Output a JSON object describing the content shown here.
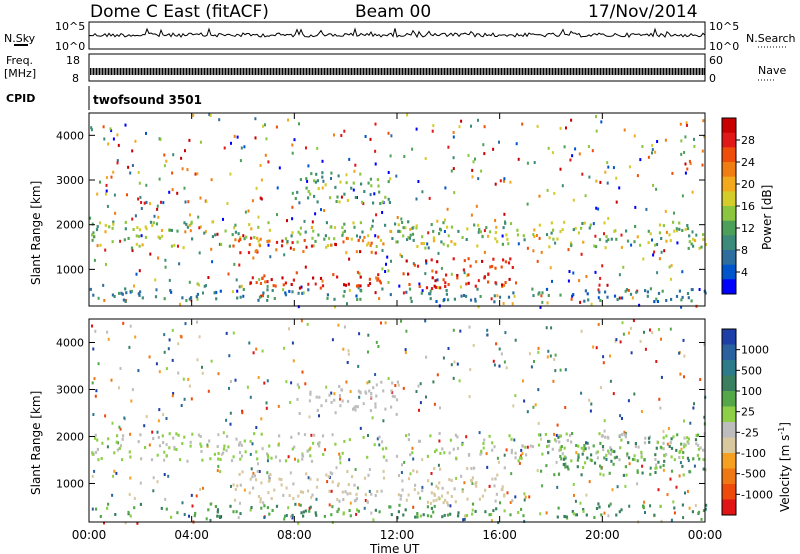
{
  "header": {
    "title": "Dome C East (fitACF)",
    "beam": "Beam 00",
    "date": "17/Nov/2014"
  },
  "params": {
    "nsky_label": "N.Sky",
    "nsky_ticks": [
      "10^5",
      "10^0"
    ],
    "nsearch_label": "N.Search",
    "nsearch_ticks": [
      "10^5",
      "10^0"
    ],
    "freq_label": "Freq.",
    "freq_unit": "[MHz]",
    "freq_ticks": [
      "18",
      "8"
    ],
    "nave_label": "Nave",
    "nave_ticks": [
      "60",
      "0"
    ],
    "cpid_label": "CPID",
    "cpid_value": "twofsound 3501"
  },
  "axes": {
    "ylabel": "Slant Range [km]",
    "xlabel": "Time UT",
    "xticks": [
      "00:00",
      "04:00",
      "08:00",
      "12:00",
      "16:00",
      "20:00",
      "00:00"
    ],
    "yticks": [
      "1000",
      "2000",
      "3000",
      "4000"
    ],
    "ylim": [
      180,
      4500
    ],
    "xlim_hours": [
      0,
      24
    ]
  },
  "power_colorbar": {
    "label": "Power [dB]",
    "ticks": [
      "4",
      "8",
      "12",
      "16",
      "20",
      "24",
      "28"
    ],
    "colors": [
      "#0000ff",
      "#0055cc",
      "#2e6e9e",
      "#3c8a7a",
      "#4da05a",
      "#8cc63e",
      "#d4cc2a",
      "#f2a91e",
      "#f07d12",
      "#ee4e0a",
      "#e01818",
      "#c80000"
    ]
  },
  "velocity_colorbar": {
    "label": "Velocity [m s",
    "label_sup": "-1",
    "label_end": "]",
    "ticks": [
      "1000",
      "500",
      "100",
      "25",
      "-25",
      "-100",
      "-500",
      "-1000"
    ],
    "colors": [
      "#1e3fa8",
      "#2a62a0",
      "#2c7a8a",
      "#3a8060",
      "#55a84a",
      "#8dd048",
      "#bdbdbd",
      "#d8c8a0",
      "#f5a020",
      "#f07814",
      "#ee4a0c",
      "#e01414"
    ]
  },
  "chart_data": [
    {
      "type": "heatmap",
      "title": "Power",
      "xlabel": "Time UT",
      "ylabel": "Slant Range [km]",
      "x_range_hours": [
        0,
        24
      ],
      "ylim": [
        180,
        4500
      ],
      "value_unit": "dB",
      "value_range": [
        0,
        30
      ],
      "echo_regions": [
        {
          "t_start": 0.0,
          "t_end": 24.0,
          "range_km": [
            1500,
            2100
          ],
          "level_db": [
            8,
            18
          ]
        },
        {
          "t_start": 5.5,
          "t_end": 11.5,
          "range_km": [
            1400,
            1750
          ],
          "level_db": [
            20,
            28
          ]
        },
        {
          "t_start": 6.0,
          "t_end": 11.5,
          "range_km": [
            600,
            1000
          ],
          "level_db": [
            22,
            30
          ]
        },
        {
          "t_start": 12.0,
          "t_end": 16.5,
          "range_km": [
            600,
            1300
          ],
          "level_db": [
            22,
            30
          ]
        },
        {
          "t_start": 0.0,
          "t_end": 24.0,
          "range_km": [
            300,
            600
          ],
          "level_db": [
            4,
            12
          ]
        },
        {
          "t_start": 8.0,
          "t_end": 12.0,
          "range_km": [
            2500,
            3200
          ],
          "level_db": [
            8,
            16
          ]
        }
      ]
    },
    {
      "type": "heatmap",
      "title": "Velocity",
      "xlabel": "Time UT",
      "ylabel": "Slant Range [km]",
      "x_range_hours": [
        0,
        24
      ],
      "ylim": [
        180,
        4500
      ],
      "value_unit": "m s-1",
      "value_range": [
        -1000,
        1000
      ],
      "echo_regions": [
        {
          "t_start": 0.0,
          "t_end": 24.0,
          "range_km": [
            1500,
            2100
          ],
          "velocity_ms": [
            -25,
            25
          ]
        },
        {
          "t_start": 5.5,
          "t_end": 11.5,
          "range_km": [
            600,
            1300
          ],
          "velocity_ms": [
            -300,
            -100
          ]
        },
        {
          "t_start": 12.0,
          "t_end": 16.5,
          "range_km": [
            600,
            1400
          ],
          "velocity_ms": [
            -300,
            -100
          ]
        },
        {
          "t_start": 17.5,
          "t_end": 24.0,
          "range_km": [
            1200,
            2100
          ],
          "velocity_ms": [
            100,
            500
          ]
        },
        {
          "t_start": 0.0,
          "t_end": 24.0,
          "range_km": [
            300,
            600
          ],
          "velocity_ms": [
            100,
            500
          ]
        },
        {
          "t_start": 8.0,
          "t_end": 12.0,
          "range_km": [
            2500,
            3200
          ],
          "velocity_ms": [
            -100,
            -25
          ]
        }
      ]
    }
  ]
}
